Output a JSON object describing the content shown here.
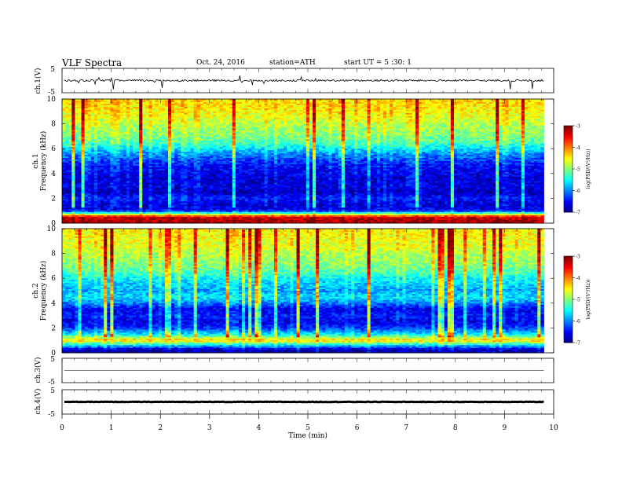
{
  "header": {
    "title": "VLF  Spectra",
    "date": "Oct. 24, 2016",
    "station": "station=ATH",
    "start": "start  UT  =   5  :30: 1"
  },
  "panels": {
    "ch1_wave": {
      "ylabel": "ch.1(V)",
      "ticks": [
        "5",
        "-5"
      ]
    },
    "ch1_spec": {
      "ylabel_line1": "ch.1",
      "ylabel_line2": "Frequency  (kHz)"
    },
    "ch2_spec": {
      "ylabel_line1": "ch.2",
      "ylabel_line2": "Frequency  (kHz)"
    },
    "ch3_wave": {
      "ylabel": "ch.3(V)",
      "ticks": [
        "5",
        "-5"
      ]
    },
    "ch4_wave": {
      "ylabel": "ch.4(V)",
      "ticks": [
        "5",
        "-5"
      ]
    }
  },
  "colorbar": {
    "label": "log(PSD/(V²/Hz))",
    "ticks": [
      "-3",
      "-4",
      "-5",
      "-6",
      "-7"
    ]
  },
  "chart_data": {
    "type": "heatmap",
    "xlabel": "Time  (min)",
    "xlim": [
      0,
      10
    ],
    "x_ticks": [
      "0",
      "1",
      "2",
      "3",
      "4",
      "5",
      "6",
      "7",
      "8",
      "9",
      "10"
    ],
    "data_end_min": 9.8,
    "spectrograms": [
      {
        "channel": "ch.1",
        "ylim": [
          0,
          10
        ],
        "y_ticks": [
          "0",
          "2",
          "4",
          "6",
          "8",
          "10"
        ],
        "clim": [
          -7,
          -3
        ],
        "profile_freq_khz": [
          0.25,
          0.5,
          1.0,
          1.5,
          2.0,
          2.5,
          3.0,
          3.5,
          4.0,
          4.5,
          5.0,
          5.5,
          6.0,
          6.5,
          7.0,
          7.5,
          8.0,
          8.5,
          9.0,
          9.5,
          10.0
        ],
        "profile_logpsd": [
          -3.2,
          -3.4,
          -6.5,
          -6.7,
          -6.4,
          -6.8,
          -6.6,
          -6.7,
          -6.6,
          -6.5,
          -6.3,
          -6.0,
          -5.6,
          -5.2,
          -5.0,
          -4.9,
          -4.8,
          -4.6,
          -4.5,
          -4.4,
          -4.4
        ]
      },
      {
        "channel": "ch.2",
        "ylim": [
          0,
          10
        ],
        "y_ticks": [
          "0",
          "2",
          "4",
          "6",
          "8",
          "10"
        ],
        "clim": [
          -7,
          -3
        ],
        "profile_freq_khz": [
          0.25,
          0.5,
          1.0,
          1.5,
          2.0,
          2.5,
          3.0,
          3.5,
          4.0,
          4.5,
          5.0,
          5.5,
          6.0,
          6.5,
          7.0,
          7.5,
          8.0,
          8.5,
          9.0,
          9.5,
          10.0
        ],
        "profile_logpsd": [
          -6.8,
          -6.0,
          -4.3,
          -5.6,
          -6.3,
          -6.6,
          -6.4,
          -6.6,
          -6.0,
          -5.6,
          -5.9,
          -5.7,
          -5.5,
          -5.2,
          -5.0,
          -4.9,
          -4.8,
          -4.6,
          -4.6,
          -4.5,
          -4.5
        ]
      }
    ],
    "waveforms": [
      {
        "channel": "ch.1",
        "ylim": [
          -5,
          5
        ],
        "level": 0.0,
        "noise_amplitude": 0.8
      },
      {
        "channel": "ch.3",
        "ylim": [
          -5,
          5
        ],
        "level": 0.0,
        "noise_amplitude": 0.0
      },
      {
        "channel": "ch.4",
        "ylim": [
          -5,
          5
        ],
        "level": 0.0,
        "noise_amplitude": 0.2
      }
    ]
  }
}
